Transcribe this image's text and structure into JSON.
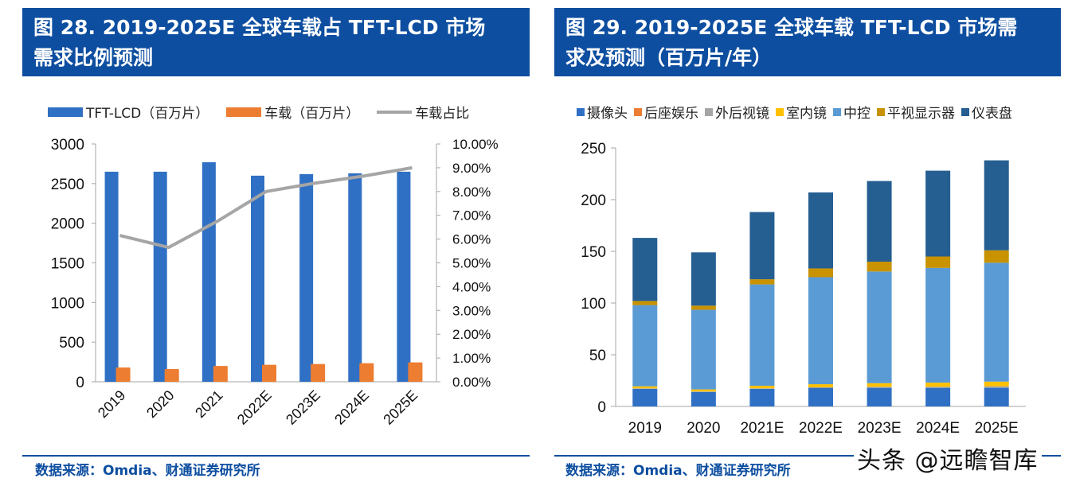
{
  "left": {
    "title_line1": "图 28. 2019-2025E 全球车载占 TFT-LCD 市场",
    "title_line2": "需求比例预测",
    "source": "数据来源：Omdia、财通证券研究所"
  },
  "right": {
    "title_line1": "图 29. 2019-2025E 全球车载 TFT-LCD 市场需",
    "title_line2": "求及预测（百万片/年）",
    "source": "数据来源：Omdia、财通证券研究所"
  },
  "watermark": "头条 @远瞻智库",
  "colors": {
    "title_bg": "#0d4ea0",
    "tft": "#3070c4",
    "vehicle": "#ed7d31",
    "ratio": "#a5a5a5",
    "camera": "#3070c4",
    "rear_ent": "#ed7d31",
    "outer_mirror": "#a5a5a5",
    "inner_mirror": "#ffc000",
    "center": "#5b9bd5",
    "hud": "#c89200",
    "cluster": "#255e91"
  },
  "chart_data": [
    {
      "type": "bar",
      "title": "图 28. 2019-2025E 全球车载占 TFT-LCD 市场需求比例预测",
      "categories": [
        "2019",
        "2020",
        "2021",
        "2022E",
        "2023E",
        "2024E",
        "2025E"
      ],
      "series": [
        {
          "name": "TFT-LCD（百万片）",
          "kind": "bar",
          "axis": "left",
          "values": [
            2650,
            2650,
            2770,
            2600,
            2620,
            2630,
            2650
          ]
        },
        {
          "name": "车载（百万片）",
          "kind": "bar",
          "axis": "left",
          "values": [
            180,
            160,
            200,
            215,
            225,
            235,
            245
          ]
        },
        {
          "name": "车载占比",
          "kind": "line",
          "axis": "right",
          "values": [
            6.15,
            5.65,
            6.75,
            8.0,
            8.35,
            8.65,
            9.0
          ]
        }
      ],
      "legend": [
        "TFT-LCD（百万片）",
        "车载（百万片）",
        "车载占比"
      ],
      "legend_position": "top",
      "ylim": [
        0,
        3000
      ],
      "yticks": [
        "0",
        "500",
        "1000",
        "1500",
        "2000",
        "2500",
        "3000"
      ],
      "y2lim": [
        0,
        10
      ],
      "y2ticks": [
        "0.00%",
        "1.00%",
        "2.00%",
        "3.00%",
        "4.00%",
        "5.00%",
        "6.00%",
        "7.00%",
        "8.00%",
        "9.00%",
        "10.00%"
      ],
      "xlabel": "",
      "ylabel": "",
      "grid": false
    },
    {
      "type": "bar",
      "stacked": true,
      "title": "图 29. 2019-2025E 全球车载 TFT-LCD 市场需求及预测（百万片/年）",
      "categories": [
        "2019",
        "2020",
        "2021E",
        "2022E",
        "2023E",
        "2024E",
        "2025E"
      ],
      "series": [
        {
          "name": "摄像头",
          "values": [
            17,
            14,
            17,
            18,
            18,
            18,
            18
          ]
        },
        {
          "name": "后座娱乐",
          "values": [
            0,
            0,
            0,
            0,
            0,
            0,
            0
          ]
        },
        {
          "name": "外后视镜",
          "values": [
            0.5,
            0.5,
            0.5,
            0.5,
            1,
            1,
            1.5
          ]
        },
        {
          "name": "室内镜",
          "values": [
            2,
            2,
            2.5,
            3,
            3.5,
            4,
            4.5
          ]
        },
        {
          "name": "中控",
          "values": [
            78.5,
            77,
            98,
            103.5,
            108,
            111,
            115
          ]
        },
        {
          "name": "平视显示器",
          "values": [
            4,
            4,
            5,
            8.5,
            9.5,
            11,
            12
          ]
        },
        {
          "name": "仪表盘",
          "values": [
            61,
            51.5,
            65,
            73.5,
            78,
            83,
            87
          ]
        }
      ],
      "totals": [
        163,
        149,
        188,
        207,
        218,
        228,
        238
      ],
      "legend": [
        "摄像头",
        "后座娱乐",
        "外后视镜",
        "室内镜",
        "中控",
        "平视显示器",
        "仪表盘"
      ],
      "legend_position": "top",
      "ylim": [
        0,
        250
      ],
      "yticks": [
        "0",
        "50",
        "100",
        "150",
        "200",
        "250"
      ],
      "xlabel": "",
      "ylabel": "",
      "grid": false
    }
  ]
}
